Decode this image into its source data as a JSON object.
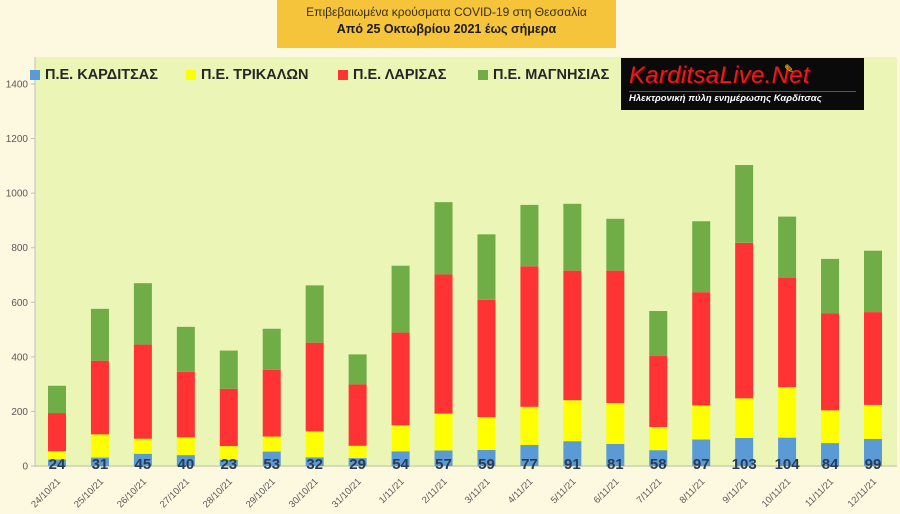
{
  "title": {
    "line1": "Επιβεβαιωμένα κρούσματα COVID-19 στη Θεσσαλία",
    "line2": "Από 25 Οκτωβρίου 2021 έως σήμερα"
  },
  "logo": {
    "brand": "KarditsaLive.Net",
    "tagline": "Ηλεκτρονική πύλη ενημέρωσης Καρδίτσας",
    "icon": "pencil-icon"
  },
  "chart_data": {
    "type": "bar",
    "stacked": true,
    "categories": [
      "24/10/21",
      "25/10/21",
      "26/10/21",
      "27/10/21",
      "28/10/21",
      "29/10/21",
      "30/10/21",
      "31/10/21",
      "1/11/21",
      "2/11/21",
      "3/11/21",
      "4/11/21",
      "5/11/21",
      "6/11/21",
      "7/11/21",
      "8/11/21",
      "9/11/21",
      "10/11/21",
      "11/11/21",
      "12/11/21"
    ],
    "series": [
      {
        "name": "Π.Ε. ΚΑΡΔΙΤΣΑΣ",
        "color": "#5b9bd5",
        "values": [
          24,
          31,
          45,
          40,
          23,
          53,
          32,
          29,
          54,
          57,
          59,
          77,
          91,
          81,
          58,
          97,
          103,
          104,
          84,
          99
        ]
      },
      {
        "name": "Π.Ε. ΤΡΙΚΑΛΩΝ",
        "color": "#ffff00",
        "values": [
          30,
          85,
          55,
          65,
          50,
          55,
          95,
          45,
          95,
          135,
          120,
          140,
          150,
          150,
          85,
          125,
          145,
          185,
          120,
          125
        ]
      },
      {
        "name": "Π.Ε. ΛΑΡΙΣΑΣ",
        "color": "#ff3333",
        "values": [
          140,
          270,
          345,
          240,
          210,
          245,
          325,
          225,
          340,
          510,
          430,
          515,
          475,
          485,
          260,
          415,
          570,
          400,
          355,
          340
        ]
      },
      {
        "name": "Π.Ε. ΜΑΓΝΗΣΙΑΣ",
        "color": "#70ad47",
        "values": [
          100,
          190,
          225,
          165,
          140,
          150,
          210,
          110,
          245,
          265,
          240,
          225,
          245,
          190,
          165,
          260,
          285,
          225,
          200,
          225
        ]
      }
    ],
    "data_labels_series": "Π.Ε. ΚΑΡΔΙΤΣΑΣ",
    "yticks": [
      0,
      200,
      400,
      600,
      800,
      1000,
      1200,
      1400
    ],
    "ylim": [
      0,
      1400
    ],
    "legend_position": "top-left",
    "plot_background": "#ebf5b5",
    "grid": false
  }
}
